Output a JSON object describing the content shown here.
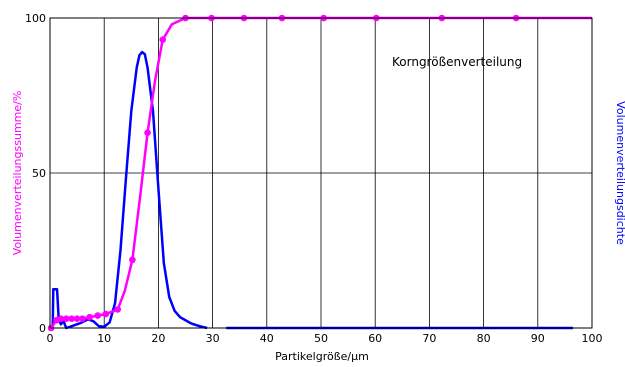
{
  "chart_data": {
    "type": "line",
    "title": "",
    "annotation": "Korngrößenverteilung",
    "xlabel": "Partikelgröße/µm",
    "ylabel_left": "Volumenverteilungssumme/%",
    "ylabel_right": "Volumenverteilungsdichte",
    "xlim": [
      0,
      100
    ],
    "ylim": [
      0,
      100
    ],
    "x_ticks": [
      0,
      10,
      20,
      30,
      40,
      50,
      60,
      70,
      80,
      90,
      100
    ],
    "y_ticks": [
      0,
      50,
      100
    ],
    "grid": {
      "vertical": true,
      "horizontal": true
    },
    "colors": {
      "cumulative": "#ff00ff",
      "density": "#0000ff",
      "grid": "#000000"
    },
    "series": [
      {
        "key": "cumulative",
        "axis": "left",
        "marker": "circle",
        "x": [
          0.2,
          1.2,
          2.0,
          3.0,
          4.0,
          5.0,
          6.0,
          7.3,
          8.8,
          10.3,
          12.5,
          15.2,
          18.0,
          20.8,
          25.0,
          29.8,
          35.8,
          42.8,
          50.5,
          60.2,
          72.3,
          86.0
        ],
        "y": [
          0,
          2.5,
          3,
          3,
          3,
          3,
          3,
          3.5,
          4,
          4.5,
          6,
          22,
          63,
          93,
          100,
          100,
          100,
          100,
          100,
          100,
          100,
          100
        ],
        "line_x": [
          0,
          0.2,
          1.2,
          2,
          3,
          4,
          5,
          6,
          7.3,
          8.8,
          10.3,
          12.5,
          13.8,
          15.2,
          16.6,
          18,
          19.4,
          20.8,
          22.5,
          25,
          29.8,
          35.8,
          42.8,
          50.5,
          60.2,
          72.3,
          86,
          100
        ],
        "line_y": [
          0,
          0,
          2.5,
          3,
          3,
          3,
          3,
          3,
          3.5,
          4,
          4.5,
          6,
          12,
          22,
          42,
          63,
          80,
          93,
          98,
          100,
          100,
          100,
          100,
          100,
          100,
          100,
          100,
          100
        ]
      },
      {
        "key": "density",
        "axis": "right",
        "marker": "none",
        "x": [
          0.5,
          0.6,
          1.3,
          1.6,
          2.0,
          2.5,
          3.0,
          4.0,
          5.5,
          7.0,
          8.0,
          9.0,
          10.0,
          11.0,
          12.0,
          13.0,
          14.0,
          15.0,
          16.0,
          16.5,
          17.0,
          17.5,
          18.0,
          19.0,
          20.0,
          21.0,
          22.0,
          23.0,
          24.0,
          25.0,
          26.0,
          27.0,
          28.0,
          29.0
        ],
        "y": [
          0,
          12.5,
          12.5,
          3,
          1.2,
          2.2,
          0,
          0.6,
          1.5,
          2.8,
          2.2,
          0.6,
          0.4,
          1.8,
          8,
          25,
          48,
          70,
          84,
          88,
          89,
          88.3,
          84,
          70,
          45,
          21,
          10,
          5.5,
          3.5,
          2.5,
          1.5,
          0.9,
          0.4,
          0
        ],
        "x2": [
          32.5,
          96.5
        ],
        "y2": [
          0,
          0
        ]
      }
    ]
  }
}
